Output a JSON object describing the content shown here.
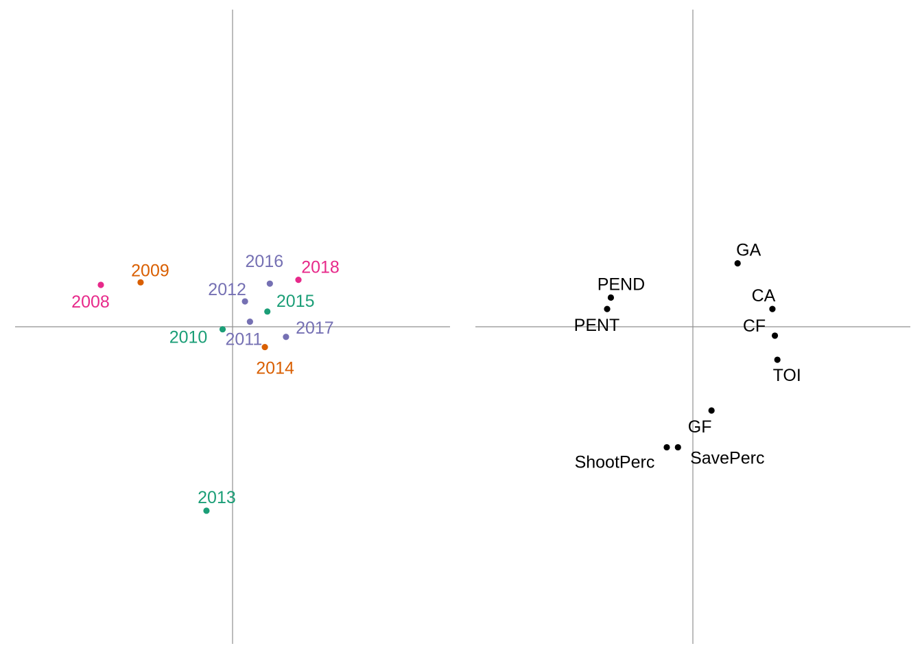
{
  "colors": {
    "background": "#ffffff",
    "axis": "#8f8f8f",
    "green": "#1b9e77",
    "orange": "#d95f02",
    "purple": "#7570b3",
    "pink": "#e7298a",
    "black": "#000000"
  },
  "chart_data": [
    {
      "type": "scatter",
      "title": "",
      "xlabel": "",
      "ylabel": "",
      "xlim": [
        -1.75,
        1.75
      ],
      "ylim": [
        -2.5,
        2.5
      ],
      "grid": false,
      "legend": "none",
      "axis_lines": "x=0 and y=0",
      "points": [
        {
          "label": "2008",
          "x": -1.06,
          "y": 0.33,
          "color": "#e7298a"
        },
        {
          "label": "2009",
          "x": -0.74,
          "y": 0.35,
          "color": "#d95f02"
        },
        {
          "label": "2010",
          "x": -0.08,
          "y": -0.02,
          "color": "#1b9e77"
        },
        {
          "label": "2011",
          "x": 0.14,
          "y": 0.04,
          "color": "#7570b3"
        },
        {
          "label": "2012",
          "x": 0.1,
          "y": 0.2,
          "color": "#7570b3"
        },
        {
          "label": "2013",
          "x": -0.21,
          "y": -1.45,
          "color": "#1b9e77"
        },
        {
          "label": "2014",
          "x": 0.26,
          "y": -0.16,
          "color": "#d95f02"
        },
        {
          "label": "2015",
          "x": 0.28,
          "y": 0.12,
          "color": "#1b9e77"
        },
        {
          "label": "2016",
          "x": 0.3,
          "y": 0.34,
          "color": "#7570b3"
        },
        {
          "label": "2017",
          "x": 0.43,
          "y": -0.08,
          "color": "#7570b3"
        },
        {
          "label": "2018",
          "x": 0.53,
          "y": 0.37,
          "color": "#e7298a"
        }
      ]
    },
    {
      "type": "scatter",
      "title": "",
      "xlabel": "",
      "ylabel": "",
      "xlim": [
        -1.75,
        1.75
      ],
      "ylim": [
        -2.5,
        2.5
      ],
      "grid": false,
      "legend": "none",
      "axis_lines": "x=0 and y=0",
      "points": [
        {
          "label": "GA",
          "x": 0.36,
          "y": 0.5,
          "color": "#000000"
        },
        {
          "label": "PEND",
          "x": -0.66,
          "y": 0.23,
          "color": "#000000"
        },
        {
          "label": "PENT",
          "x": -0.69,
          "y": 0.14,
          "color": "#000000"
        },
        {
          "label": "CA",
          "x": 0.64,
          "y": 0.14,
          "color": "#000000"
        },
        {
          "label": "CF",
          "x": 0.66,
          "y": -0.07,
          "color": "#000000"
        },
        {
          "label": "TOI",
          "x": 0.68,
          "y": -0.26,
          "color": "#000000"
        },
        {
          "label": "GF",
          "x": 0.15,
          "y": -0.66,
          "color": "#000000"
        },
        {
          "label": "SavePerc",
          "x": -0.12,
          "y": -0.95,
          "color": "#000000"
        },
        {
          "label": "ShootPerc",
          "x": -0.21,
          "y": -0.95,
          "color": "#000000"
        }
      ]
    }
  ]
}
